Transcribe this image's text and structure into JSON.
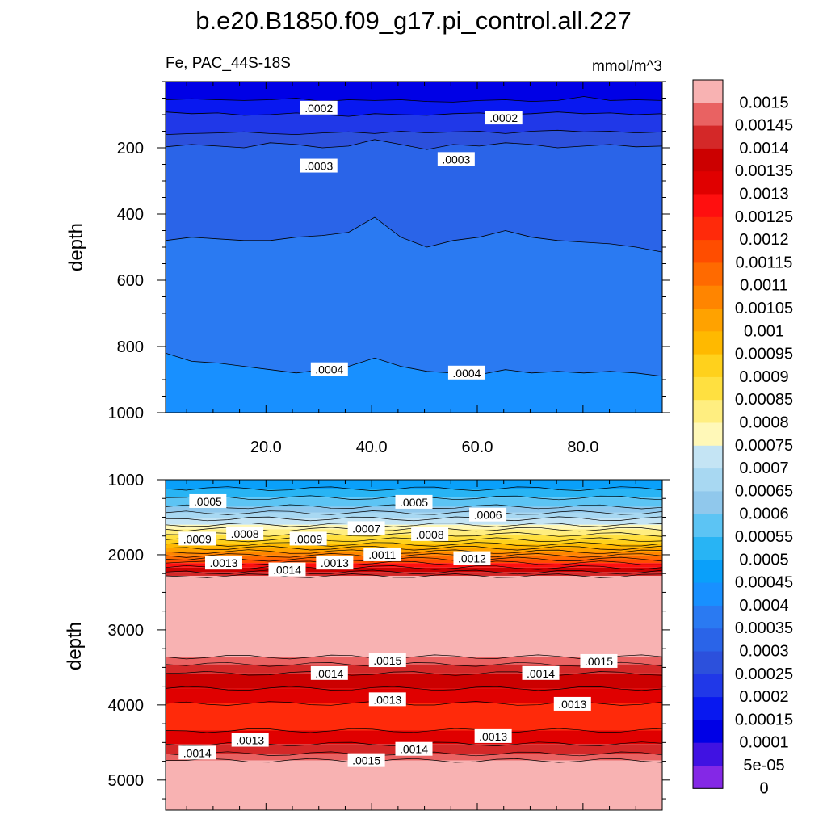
{
  "title": "b.e20.B1850.f09_g17.pi_control.all.227",
  "subtitle_left": "Fe, PAC_44S-18S",
  "subtitle_right": "mmol/m^3",
  "colorbar": {
    "labels": [
      "0.0015",
      "0.00145",
      "0.0014",
      "0.00135",
      "0.0013",
      "0.00125",
      "0.0012",
      "0.00115",
      "0.0011",
      "0.00105",
      "0.001",
      "0.00095",
      "0.0009",
      "0.00085",
      "0.0008",
      "0.00075",
      "0.0007",
      "0.00065",
      "0.0006",
      "0.00055",
      "0.0005",
      "0.00045",
      "0.0004",
      "0.00035",
      "0.0003",
      "0.00025",
      "0.0002",
      "0.00015",
      "0.0001",
      "5e-05",
      "0"
    ],
    "colors": [
      "#F8B2B2",
      "#E96262",
      "#D42828",
      "#CC0000",
      "#E00000",
      "#FF0F0F",
      "#FF2A0A",
      "#FF4D00",
      "#FF6A00",
      "#FF8500",
      "#FFA200",
      "#FFB900",
      "#FFD11C",
      "#FFE040",
      "#FFEE80",
      "#FFF8B8",
      "#C4E4F4",
      "#A8D8F2",
      "#90C8EC",
      "#5CC4F4",
      "#28B4F4",
      "#0AA0FA",
      "#1890FF",
      "#2A7AF2",
      "#2A64E8",
      "#2C50DC",
      "#2038E8",
      "#0818F0",
      "#0000E6",
      "#4012E2",
      "#8428E6"
    ]
  },
  "chart_data": [
    {
      "type": "contour",
      "panel": "top",
      "title": "Fe, PAC_44S-18S",
      "units": "mmol/m^3",
      "xlabel": "",
      "ylabel": "depth",
      "xlim": [
        1,
        95
      ],
      "ylim": [
        0,
        1000
      ],
      "y_inverted": true,
      "x_tick_labels": [
        "20.0",
        "40.0",
        "60.0",
        "80.0"
      ],
      "x_ticks": [
        20,
        40,
        60,
        80
      ],
      "y_tick_labels": [
        "200",
        "400",
        "600",
        "800",
        "1000"
      ],
      "y_ticks": [
        200,
        400,
        600,
        800,
        1000
      ],
      "contour_labels": [
        {
          "text": ".0002",
          "x": 30,
          "y": 80
        },
        {
          "text": ".0002",
          "x": 65,
          "y": 110
        },
        {
          "text": ".0003",
          "x": 30,
          "y": 255
        },
        {
          "text": ".0003",
          "x": 56,
          "y": 235
        },
        {
          "text": ".0004",
          "x": 32,
          "y": 870
        },
        {
          "text": ".0004",
          "x": 58,
          "y": 880
        }
      ],
      "bands": [
        {
          "upper": 0,
          "depths": [
            0,
            0,
            0,
            0,
            0,
            0,
            0,
            0,
            0,
            0,
            0,
            0,
            0,
            0,
            0,
            0,
            0,
            0,
            0,
            0
          ],
          "value": 0.00012
        },
        {
          "upper": 1,
          "depths": [
            55,
            52,
            55,
            57,
            55,
            50,
            60,
            55,
            57,
            55,
            60,
            62,
            57,
            55,
            60,
            57,
            45,
            57,
            55,
            57
          ],
          "value": 0.00018
        },
        {
          "upper": 2,
          "depths": [
            92,
            97,
            95,
            102,
            100,
            95,
            100,
            105,
            97,
            100,
            102,
            97,
            95,
            100,
            97,
            92,
            97,
            95,
            100,
            97
          ],
          "value": 0.00022
        },
        {
          "upper": 3,
          "depths": [
            160,
            157,
            155,
            152,
            157,
            160,
            155,
            152,
            157,
            150,
            155,
            152,
            150,
            157,
            150,
            147,
            152,
            150,
            155,
            152
          ],
          "value": 0.00027
        },
        {
          "upper": 4,
          "depths": [
            197,
            190,
            195,
            200,
            185,
            190,
            200,
            195,
            175,
            190,
            205,
            190,
            195,
            185,
            190,
            200,
            195,
            190,
            197,
            195
          ],
          "value": 0.00032
        },
        {
          "upper": 5,
          "depths": [
            480,
            470,
            475,
            480,
            480,
            470,
            465,
            455,
            410,
            470,
            500,
            480,
            470,
            450,
            470,
            480,
            485,
            490,
            500,
            515
          ],
          "value": 0.00037
        },
        {
          "upper": 6,
          "depths": [
            820,
            845,
            850,
            860,
            870,
            880,
            870,
            860,
            835,
            860,
            875,
            880,
            885,
            870,
            880,
            875,
            880,
            875,
            880,
            890
          ],
          "value": 0.00042
        }
      ]
    },
    {
      "type": "contour",
      "panel": "bottom",
      "xlabel": "",
      "ylabel": "depth",
      "xlim": [
        1,
        95
      ],
      "ylim": [
        1000,
        5400
      ],
      "y_inverted": true,
      "y_tick_labels": [
        "1000",
        "2000",
        "3000",
        "4000",
        "5000"
      ],
      "y_ticks": [
        1000,
        2000,
        3000,
        4000,
        5000
      ],
      "contour_labels": [
        {
          "text": ".0005",
          "x": 9,
          "y": 1290
        },
        {
          "text": ".0005",
          "x": 48,
          "y": 1300
        },
        {
          "text": ".0006",
          "x": 62,
          "y": 1470
        },
        {
          "text": ".0007",
          "x": 39,
          "y": 1650
        },
        {
          "text": ".0009",
          "x": 7,
          "y": 1790
        },
        {
          "text": ".0008",
          "x": 16,
          "y": 1720
        },
        {
          "text": ".0009",
          "x": 28,
          "y": 1790
        },
        {
          "text": ".0008",
          "x": 51,
          "y": 1730
        },
        {
          "text": ".0011",
          "x": 42,
          "y": 2000
        },
        {
          "text": ".0012",
          "x": 59,
          "y": 2050
        },
        {
          "text": ".0013",
          "x": 12,
          "y": 2110
        },
        {
          "text": ".0014",
          "x": 24,
          "y": 2200
        },
        {
          "text": ".0013",
          "x": 33,
          "y": 2110
        },
        {
          "text": ".0015",
          "x": 43,
          "y": 3410
        },
        {
          "text": ".0014",
          "x": 32,
          "y": 3580
        },
        {
          "text": ".0014",
          "x": 72,
          "y": 3580
        },
        {
          "text": ".0015",
          "x": 83,
          "y": 3420
        },
        {
          "text": ".0013",
          "x": 43,
          "y": 3930
        },
        {
          "text": ".0013",
          "x": 78,
          "y": 3990
        },
        {
          "text": ".0013",
          "x": 17,
          "y": 4470
        },
        {
          "text": ".0013",
          "x": 63,
          "y": 4420
        },
        {
          "text": ".0014",
          "x": 7,
          "y": 4640
        },
        {
          "text": ".0014",
          "x": 48,
          "y": 4590
        },
        {
          "text": ".0015",
          "x": 39,
          "y": 4740
        }
      ],
      "bands": [
        {
          "depth": 1000,
          "value": 0.00047
        },
        {
          "depth": 1120,
          "value": 0.00052
        },
        {
          "depth": 1240,
          "value": 0.00057
        },
        {
          "depth": 1360,
          "value": 0.00062
        },
        {
          "depth": 1440,
          "value": 0.00067
        },
        {
          "depth": 1520,
          "value": 0.00072
        },
        {
          "depth": 1600,
          "value": 0.00077
        },
        {
          "depth": 1660,
          "value": 0.00082
        },
        {
          "depth": 1730,
          "value": 0.00087
        },
        {
          "depth": 1800,
          "value": 0.00092
        },
        {
          "depth": 1860,
          "value": 0.00097
        },
        {
          "depth": 1910,
          "value": 0.00102
        },
        {
          "depth": 1960,
          "value": 0.00107
        },
        {
          "depth": 2010,
          "value": 0.00112
        },
        {
          "depth": 2060,
          "value": 0.00117
        },
        {
          "depth": 2110,
          "value": 0.00127
        },
        {
          "depth": 2170,
          "value": 0.00137
        },
        {
          "depth": 2230,
          "value": 0.00143
        },
        {
          "depth": 2280,
          "value": 0.0015
        },
        {
          "depth": 3360,
          "value": 0.00147
        },
        {
          "depth": 3460,
          "value": 0.00142
        },
        {
          "depth": 3580,
          "value": 0.00137
        },
        {
          "depth": 3780,
          "value": 0.00132
        },
        {
          "depth": 3980,
          "value": 0.00122
        },
        {
          "depth": 4340,
          "value": 0.00132
        },
        {
          "depth": 4520,
          "value": 0.00142
        },
        {
          "depth": 4650,
          "value": 0.00147
        },
        {
          "depth": 4740,
          "value": 0.0015
        }
      ]
    }
  ]
}
